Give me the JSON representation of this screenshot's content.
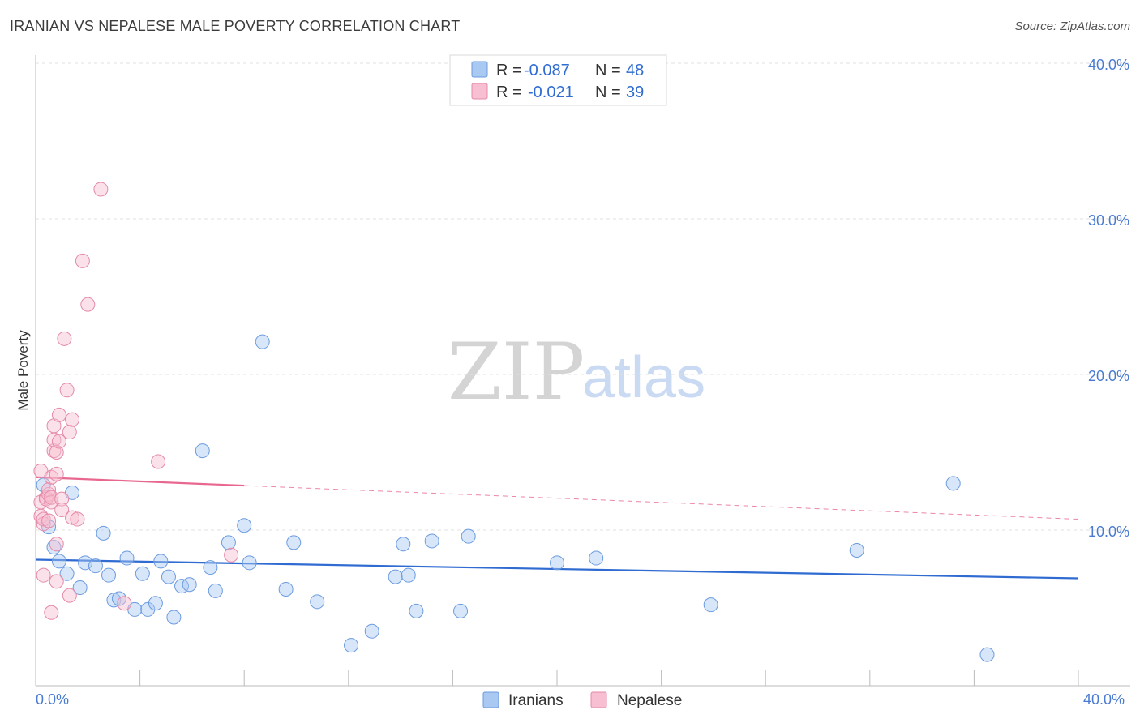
{
  "header": {
    "title": "IRANIAN VS NEPALESE MALE POVERTY CORRELATION CHART",
    "source": "Source: ZipAtlas.com"
  },
  "watermark": {
    "zip": "ZIP",
    "atlas": "atlas"
  },
  "legend": {
    "rows": [
      {
        "r_label": "R =",
        "r_value": "-0.087",
        "n_label": "N =",
        "n_value": "48",
        "color": "#a9c8f2",
        "stroke": "#6b9be0"
      },
      {
        "r_label": "R =",
        "r_value": "-0.021",
        "n_label": "N =",
        "n_value": "39",
        "color": "#f7bfd1",
        "stroke": "#e58aa8"
      }
    ]
  },
  "chart_data": {
    "type": "scatter",
    "title": "IRANIAN VS NEPALESE MALE POVERTY CORRELATION CHART",
    "ylabel": "Male Poverty",
    "xlabel": "",
    "xlim": [
      0,
      40
    ],
    "ylim": [
      0,
      40
    ],
    "x_tick_labels": [
      "0.0%",
      "40.0%"
    ],
    "y_ticks": [
      {
        "value": 10,
        "label": "10.0%"
      },
      {
        "value": 20,
        "label": "20.0%"
      },
      {
        "value": 30,
        "label": "30.0%"
      },
      {
        "value": 40,
        "label": "40.0%"
      }
    ],
    "series": [
      {
        "name": "Iranians",
        "color": "#a9c8f2",
        "stroke": "#6b9be0",
        "line_color": "#2f6bd1",
        "trend": {
          "x0": 0,
          "y0": 8.1,
          "x1": 40,
          "y1": 6.9,
          "solid_to": 40
        },
        "points": [
          [
            0.3,
            12.9
          ],
          [
            0.5,
            10.2
          ],
          [
            0.7,
            8.9
          ],
          [
            0.9,
            8.0
          ],
          [
            1.2,
            7.2
          ],
          [
            1.4,
            12.4
          ],
          [
            1.7,
            6.3
          ],
          [
            1.9,
            7.9
          ],
          [
            2.3,
            7.7
          ],
          [
            2.6,
            9.8
          ],
          [
            2.8,
            7.1
          ],
          [
            3.0,
            5.5
          ],
          [
            3.2,
            5.6
          ],
          [
            3.5,
            8.2
          ],
          [
            3.8,
            4.9
          ],
          [
            4.1,
            7.2
          ],
          [
            4.3,
            4.9
          ],
          [
            4.6,
            5.3
          ],
          [
            4.8,
            8.0
          ],
          [
            5.1,
            7.0
          ],
          [
            5.3,
            4.4
          ],
          [
            5.6,
            6.4
          ],
          [
            5.9,
            6.5
          ],
          [
            6.4,
            15.1
          ],
          [
            6.7,
            7.6
          ],
          [
            6.9,
            6.1
          ],
          [
            7.4,
            9.2
          ],
          [
            8.0,
            10.3
          ],
          [
            8.2,
            7.9
          ],
          [
            8.7,
            22.1
          ],
          [
            9.6,
            6.2
          ],
          [
            9.9,
            9.2
          ],
          [
            10.8,
            5.4
          ],
          [
            12.1,
            2.6
          ],
          [
            12.9,
            3.5
          ],
          [
            13.8,
            7.0
          ],
          [
            14.1,
            9.1
          ],
          [
            14.3,
            7.1
          ],
          [
            14.6,
            4.8
          ],
          [
            15.2,
            9.3
          ],
          [
            16.3,
            4.8
          ],
          [
            16.6,
            9.6
          ],
          [
            20.0,
            7.9
          ],
          [
            21.5,
            8.2
          ],
          [
            25.9,
            5.2
          ],
          [
            31.5,
            8.7
          ],
          [
            35.2,
            13.0
          ],
          [
            36.5,
            2.0
          ]
        ]
      },
      {
        "name": "Nepalese",
        "color": "#f7bfd1",
        "stroke": "#e58aa8",
        "line_color": "#e8678f",
        "trend": {
          "x0": 0,
          "y0": 13.4,
          "x1": 40,
          "y1": 10.7,
          "solid_to": 8
        },
        "points": [
          [
            0.2,
            13.8
          ],
          [
            0.2,
            11.8
          ],
          [
            0.2,
            10.9
          ],
          [
            0.3,
            10.4
          ],
          [
            0.3,
            10.7
          ],
          [
            0.3,
            7.1
          ],
          [
            0.4,
            12.1
          ],
          [
            0.4,
            12.0
          ],
          [
            0.5,
            12.3
          ],
          [
            0.5,
            12.6
          ],
          [
            0.5,
            10.6
          ],
          [
            0.6,
            13.4
          ],
          [
            0.6,
            11.8
          ],
          [
            0.6,
            12.1
          ],
          [
            0.6,
            4.7
          ],
          [
            0.7,
            15.1
          ],
          [
            0.7,
            15.8
          ],
          [
            0.7,
            16.7
          ],
          [
            0.8,
            13.6
          ],
          [
            0.8,
            15.0
          ],
          [
            0.8,
            9.1
          ],
          [
            0.8,
            6.7
          ],
          [
            0.9,
            17.4
          ],
          [
            0.9,
            15.7
          ],
          [
            1.0,
            12.0
          ],
          [
            1.0,
            11.3
          ],
          [
            1.1,
            22.3
          ],
          [
            1.2,
            19.0
          ],
          [
            1.3,
            16.3
          ],
          [
            1.3,
            5.8
          ],
          [
            1.4,
            10.8
          ],
          [
            1.4,
            17.1
          ],
          [
            1.6,
            10.7
          ],
          [
            1.8,
            27.3
          ],
          [
            2.0,
            24.5
          ],
          [
            2.5,
            31.9
          ],
          [
            3.4,
            5.3
          ],
          [
            4.7,
            14.4
          ],
          [
            7.5,
            8.4
          ]
        ]
      }
    ]
  }
}
